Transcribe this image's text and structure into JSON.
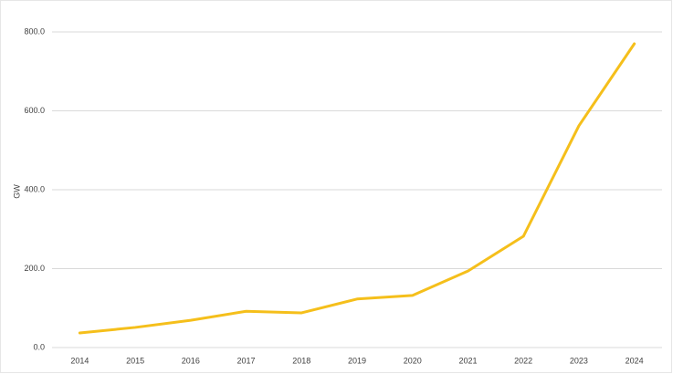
{
  "chart_data": {
    "type": "line",
    "y_label": "GW",
    "categories": [
      "2014",
      "2015",
      "2016",
      "2017",
      "2018",
      "2019",
      "2020",
      "2021",
      "2022",
      "2023",
      "2024"
    ],
    "series": [
      {
        "name": "GW",
        "color": "#f5bf1b",
        "values": [
          37,
          51,
          69,
          92,
          88,
          123,
          132,
          194,
          282,
          562,
          770
        ]
      }
    ],
    "ylim": [
      0,
      800
    ],
    "yticks": [
      {
        "value": 0,
        "label": "0.0"
      },
      {
        "value": 200,
        "label": "200.0"
      },
      {
        "value": 400,
        "label": "400.0"
      },
      {
        "value": 600,
        "label": "600.0"
      },
      {
        "value": 800,
        "label": "800.0"
      }
    ],
    "grid": true
  }
}
